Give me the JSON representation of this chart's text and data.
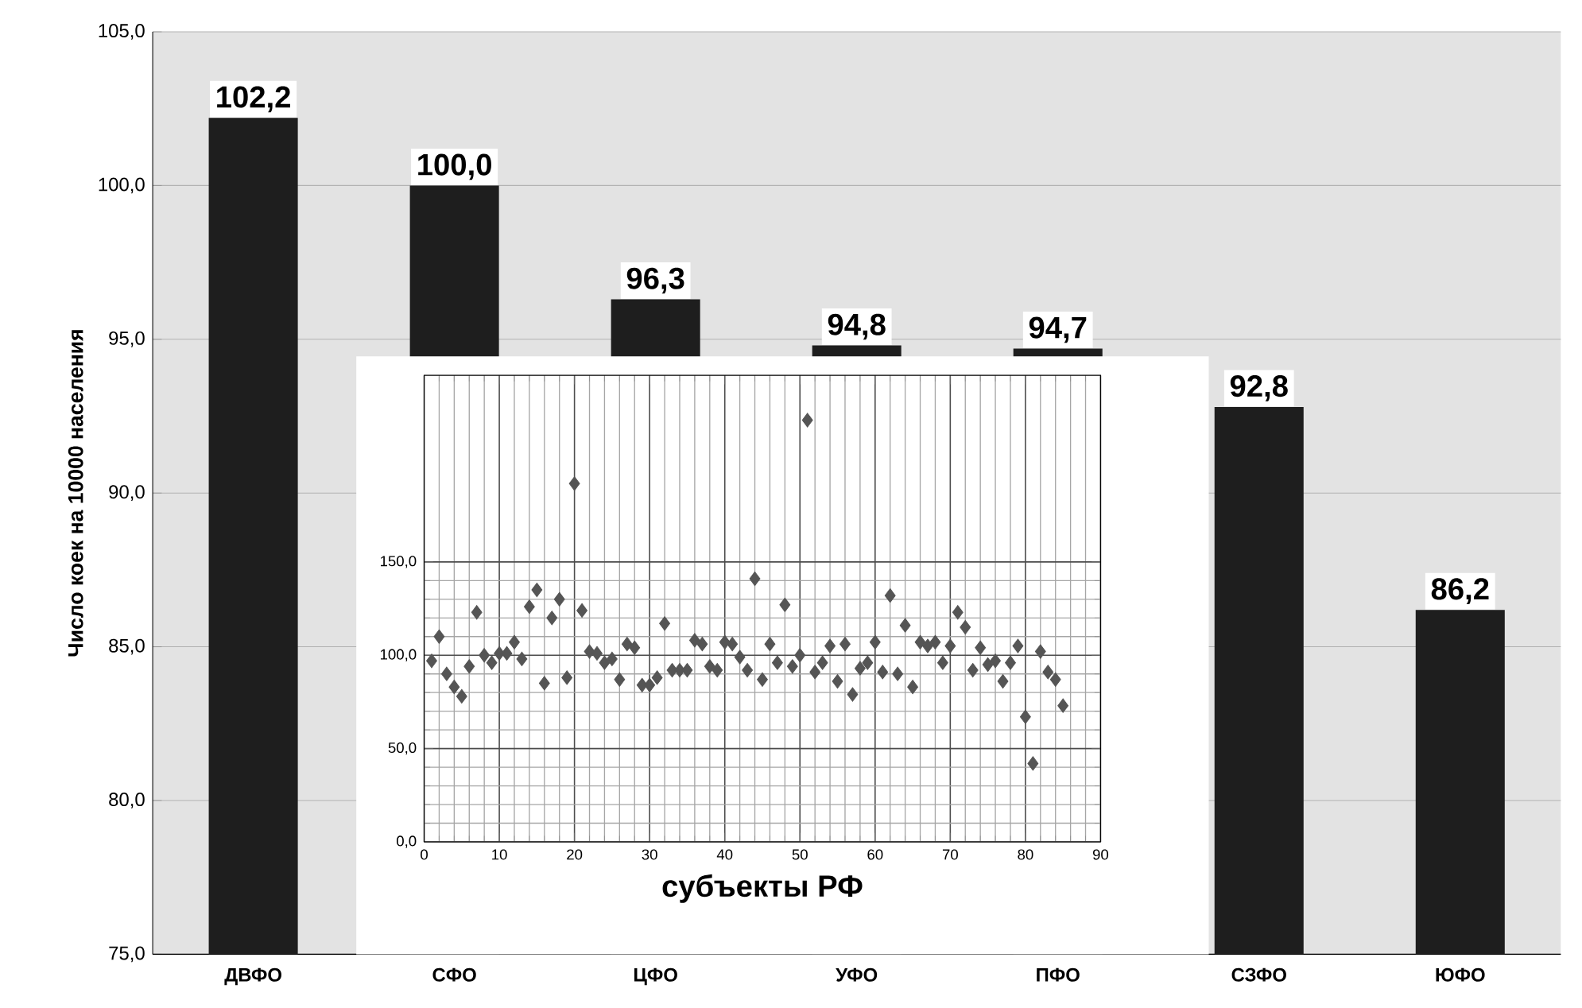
{
  "chart_data": [
    {
      "type": "bar",
      "ylabel": "Число коек на 10000 населения",
      "categories": [
        "ДВФО",
        "СФО",
        "ЦФО",
        "УФО",
        "ПФО",
        "СЗФО",
        "ЮФО"
      ],
      "values": [
        102.2,
        100.0,
        96.3,
        94.8,
        94.7,
        92.8,
        86.2
      ],
      "value_labels": [
        "102,2",
        "100,0",
        "96,3",
        "94,8",
        "94,7",
        "92,8",
        "86,2"
      ],
      "color": "#1e1e1e",
      "ylim": [
        75,
        105
      ],
      "yticks": [
        {
          "value": 75,
          "label": "75,0"
        },
        {
          "value": 80,
          "label": "80,0"
        },
        {
          "value": 85,
          "label": "85,0"
        },
        {
          "value": 90,
          "label": "90,0"
        },
        {
          "value": 95,
          "label": "95,0"
        },
        {
          "value": 100,
          "label": "100,0"
        },
        {
          "value": 105,
          "label": "105,0"
        }
      ],
      "grid": "y"
    },
    {
      "type": "scatter",
      "xlabel": "субъекты РФ",
      "marker": "diamond",
      "color": "#555555",
      "grid": true,
      "x": [
        1,
        2,
        3,
        4,
        5,
        6,
        7,
        8,
        9,
        10,
        11,
        12,
        13,
        14,
        15,
        16,
        17,
        18,
        19,
        20,
        21,
        22,
        23,
        24,
        25,
        26,
        27,
        28,
        29,
        30,
        31,
        32,
        33,
        34,
        35,
        36,
        37,
        38,
        39,
        40,
        41,
        42,
        43,
        44,
        45,
        46,
        47,
        48,
        49,
        50,
        51,
        52,
        53,
        54,
        55,
        56,
        57,
        58,
        59,
        60,
        61,
        62,
        63,
        64,
        65,
        66,
        67,
        68,
        69,
        70,
        71,
        72,
        73,
        74,
        75,
        76,
        77,
        78,
        79,
        80,
        81,
        82,
        83,
        84,
        85
      ],
      "values": [
        97,
        110,
        90,
        83,
        78,
        94,
        123,
        100,
        96,
        101,
        101,
        107,
        98,
        126,
        135,
        85,
        120,
        130,
        88,
        192,
        124,
        102,
        101,
        96,
        98,
        87,
        106,
        104,
        84,
        84,
        88,
        117,
        92,
        92,
        92,
        108,
        106,
        94,
        92,
        107,
        106,
        99,
        92,
        141,
        87,
        106,
        96,
        127,
        94,
        100,
        226,
        91,
        96,
        105,
        86,
        106,
        79,
        93,
        96,
        107,
        91,
        132,
        90,
        116,
        83,
        107,
        105,
        107,
        96,
        105,
        123,
        115,
        92,
        104,
        95,
        97,
        86,
        96,
        105,
        67,
        42,
        102,
        91,
        87,
        73
      ],
      "xlim": [
        0,
        90
      ],
      "xticks": [
        0,
        10,
        20,
        30,
        40,
        50,
        60,
        70,
        80,
        90
      ],
      "ylim": [
        0,
        250
      ],
      "yticks": [
        {
          "value": 0,
          "label": "0,0"
        },
        {
          "value": 50,
          "label": "50,0"
        },
        {
          "value": 100,
          "label": "100,0"
        },
        {
          "value": 150,
          "label": "150,0"
        }
      ]
    }
  ]
}
